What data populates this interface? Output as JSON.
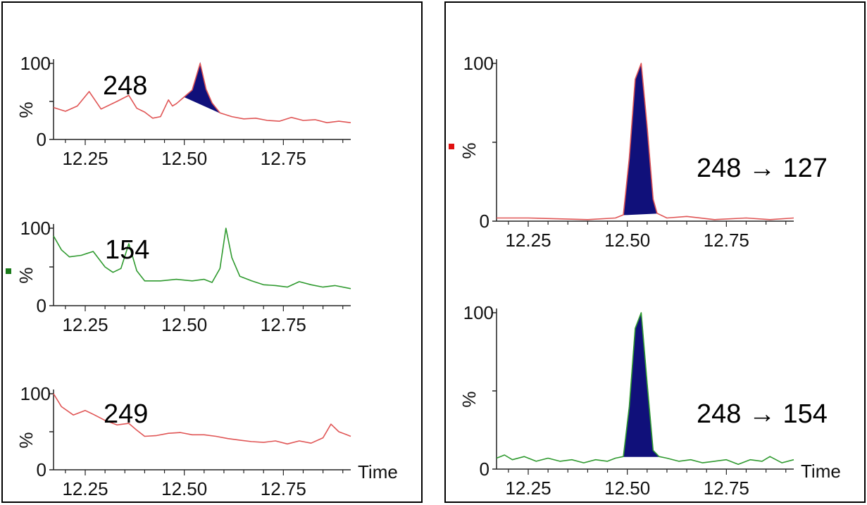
{
  "panels": [
    {
      "name": "left",
      "traces": [
        {
          "label": "248",
          "color": "#e05555",
          "fill": "#10107a",
          "marker": "",
          "show_time": false
        },
        {
          "label": "154",
          "color": "#2f9a2f",
          "fill": "#10107a",
          "marker": "#1a7a1a",
          "show_time": false
        },
        {
          "label": "249",
          "color": "#e05555",
          "fill": "#10107a",
          "marker": "",
          "show_time": true
        }
      ]
    },
    {
      "name": "right",
      "traces": [
        {
          "label": "248 → 127",
          "color": "#e05555",
          "fill": "#10107a",
          "marker": "#e01010",
          "show_time": false
        },
        {
          "label": "248 → 154",
          "color": "#2f9a2f",
          "fill": "#10107a",
          "marker": "",
          "show_time": true
        }
      ]
    }
  ],
  "axis": {
    "y_ticks": [
      "0",
      "100"
    ],
    "y_label": "%",
    "x_ticks": [
      "12.25",
      "12.50",
      "12.75"
    ],
    "x_label": "Time"
  },
  "chart_data": [
    {
      "type": "line",
      "title": "248",
      "xlabel": "Time",
      "ylabel": "%",
      "xlim": [
        12.17,
        12.92
      ],
      "ylim": [
        0,
        100
      ],
      "fill_range": [
        12.5,
        12.59
      ],
      "series": [
        {
          "x": [
            12.17,
            12.2,
            12.23,
            12.26,
            12.29,
            12.33,
            12.36,
            12.38,
            12.4,
            12.42,
            12.44,
            12.46,
            12.47,
            12.48,
            12.5,
            12.52,
            12.54,
            12.555,
            12.57,
            12.59,
            12.62,
            12.65,
            12.68,
            12.71,
            12.74,
            12.77,
            12.8,
            12.83,
            12.86,
            12.89,
            12.92
          ],
          "values": [
            42,
            37,
            44,
            63,
            40,
            50,
            58,
            41,
            36,
            28,
            30,
            52,
            44,
            47,
            56,
            65,
            100,
            66,
            48,
            35,
            30,
            27,
            28,
            25,
            24,
            29,
            25,
            26,
            22,
            24,
            22
          ]
        }
      ]
    },
    {
      "type": "line",
      "title": "154",
      "xlabel": "Time",
      "ylabel": "%",
      "xlim": [
        12.17,
        12.92
      ],
      "ylim": [
        0,
        100
      ],
      "series": [
        {
          "x": [
            12.17,
            12.19,
            12.21,
            12.24,
            12.27,
            12.3,
            12.32,
            12.34,
            12.36,
            12.38,
            12.4,
            12.44,
            12.48,
            12.52,
            12.55,
            12.57,
            12.59,
            12.605,
            12.62,
            12.64,
            12.67,
            12.7,
            12.73,
            12.76,
            12.79,
            12.82,
            12.85,
            12.88,
            12.92
          ],
          "values": [
            90,
            72,
            63,
            65,
            70,
            50,
            43,
            48,
            80,
            45,
            32,
            32,
            34,
            32,
            34,
            30,
            48,
            100,
            62,
            38,
            32,
            27,
            26,
            24,
            31,
            27,
            24,
            26,
            22
          ]
        }
      ]
    },
    {
      "type": "line",
      "title": "249",
      "xlabel": "Time",
      "ylabel": "%",
      "xlim": [
        12.17,
        12.92
      ],
      "ylim": [
        0,
        100
      ],
      "series": [
        {
          "x": [
            12.17,
            12.19,
            12.22,
            12.25,
            12.27,
            12.3,
            12.33,
            12.36,
            12.38,
            12.4,
            12.43,
            12.46,
            12.49,
            12.52,
            12.55,
            12.58,
            12.61,
            12.64,
            12.67,
            12.7,
            12.73,
            12.76,
            12.79,
            12.82,
            12.85,
            12.87,
            12.89,
            12.91,
            12.92
          ],
          "values": [
            100,
            83,
            72,
            78,
            73,
            65,
            59,
            61,
            52,
            44,
            45,
            48,
            49,
            46,
            46,
            44,
            41,
            39,
            37,
            36,
            38,
            34,
            38,
            35,
            42,
            60,
            50,
            46,
            44
          ]
        }
      ]
    },
    {
      "type": "line",
      "title": "248 → 127",
      "xlabel": "Time",
      "ylabel": "%",
      "xlim": [
        12.17,
        12.92
      ],
      "ylim": [
        0,
        100
      ],
      "fill_range": [
        12.49,
        12.575
      ],
      "series": [
        {
          "x": [
            12.17,
            12.25,
            12.4,
            12.47,
            12.49,
            12.505,
            12.52,
            12.535,
            12.55,
            12.565,
            12.575,
            12.6,
            12.65,
            12.72,
            12.8,
            12.86,
            12.92
          ],
          "values": [
            2,
            2,
            1,
            2,
            4,
            40,
            90,
            100,
            60,
            14,
            5,
            2,
            3,
            1,
            2,
            1,
            2
          ]
        }
      ]
    },
    {
      "type": "line",
      "title": "248 → 154",
      "xlabel": "Time",
      "ylabel": "%",
      "xlim": [
        12.17,
        12.92
      ],
      "ylim": [
        0,
        100
      ],
      "fill_range": [
        12.49,
        12.58
      ],
      "series": [
        {
          "x": [
            12.17,
            12.19,
            12.21,
            12.24,
            12.27,
            12.3,
            12.33,
            12.36,
            12.39,
            12.42,
            12.45,
            12.47,
            12.49,
            12.505,
            12.52,
            12.535,
            12.55,
            12.565,
            12.58,
            12.6,
            12.63,
            12.66,
            12.69,
            12.72,
            12.75,
            12.78,
            12.81,
            12.84,
            12.86,
            12.89,
            12.92
          ],
          "values": [
            7,
            9,
            6,
            8,
            5,
            7,
            5,
            6,
            4,
            6,
            5,
            7,
            8,
            40,
            90,
            100,
            55,
            12,
            8,
            7,
            5,
            6,
            4,
            5,
            6,
            3,
            6,
            5,
            8,
            4,
            6
          ]
        }
      ]
    }
  ]
}
